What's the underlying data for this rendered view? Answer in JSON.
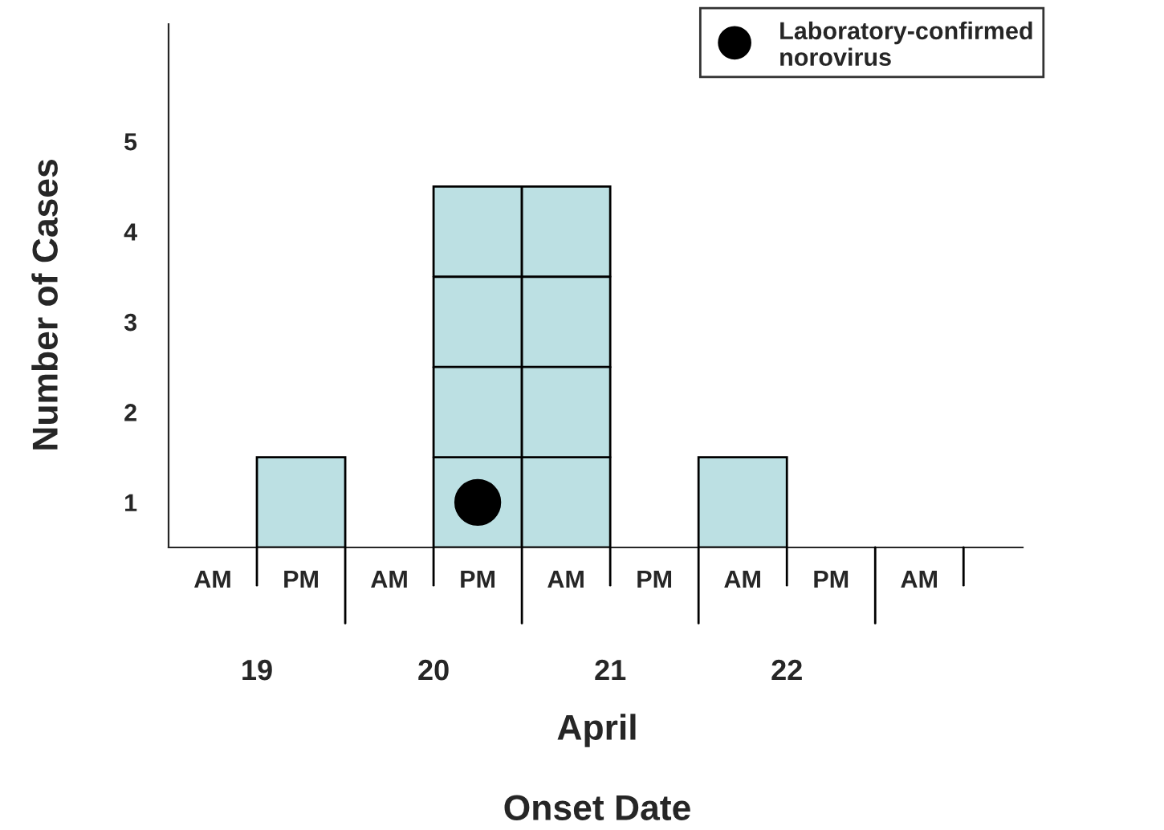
{
  "chart_data": {
    "type": "bar",
    "xlabel": "April",
    "ylabel": "Number of Cases",
    "categories": [
      "AM",
      "PM",
      "AM",
      "PM",
      "AM",
      "PM",
      "AM",
      "PM",
      "AM"
    ],
    "series": [
      {
        "color": "#bce0e3",
        "values": [
          0,
          1,
          0,
          4,
          4,
          0,
          1,
          0,
          0
        ]
      },
      {
        "type": "scatter",
        "name": "Laboratory-confirmed norovirus",
        "color": "#000000",
        "marker": "circle",
        "values": [
          null,
          null,
          null,
          0.5,
          null,
          null,
          null,
          null,
          null
        ]
      }
    ],
    "annotations": [
      "19",
      "20",
      "21",
      "22",
      "Onset Date"
    ],
    "ylim": [
      0,
      5.8
    ],
    "yticks": [
      {
        "value": 0.5,
        "label": "1"
      },
      {
        "value": 1.5,
        "label": "2"
      },
      {
        "value": 2.5,
        "label": "3"
      },
      {
        "value": 3.5,
        "label": "4"
      },
      {
        "value": 4.5,
        "label": "5"
      }
    ],
    "legend": "top right",
    "grid": false
  }
}
